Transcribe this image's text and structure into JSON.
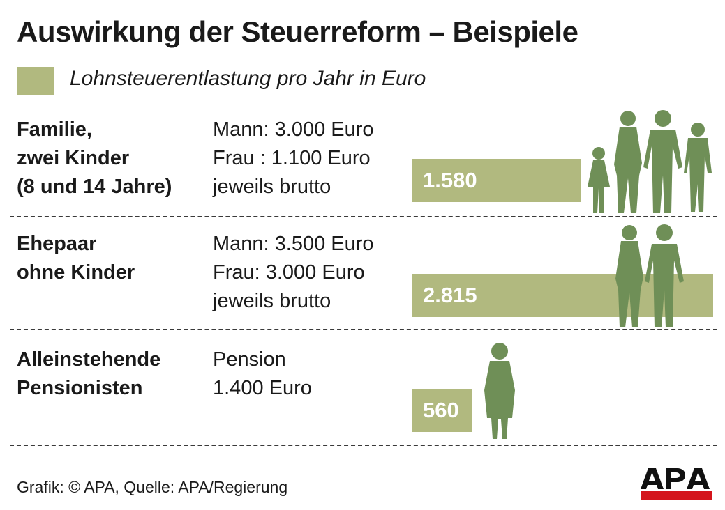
{
  "title": "Auswirkung der Steuerreform – Beispiele",
  "legend": {
    "label": "Lohnsteuerentlastung pro Jahr in Euro",
    "color": "#b1b97f"
  },
  "colors": {
    "bar": "#b1b97f",
    "silhouette": "#6f8f57",
    "logo_red": "#d4151c",
    "divider": "#3a3a3a"
  },
  "rows": [
    {
      "label": [
        "Familie,",
        "zwei Kinder",
        "(8 und 14 Jahre)"
      ],
      "detail": [
        "Mann: 3.000 Euro",
        "Frau : 1.100 Euro",
        "jeweils brutto"
      ],
      "value_label": "1.580",
      "icon": "family-silhouette-icon"
    },
    {
      "label": [
        "Ehepaar",
        "ohne Kinder"
      ],
      "detail": [
        "Mann: 3.500 Euro",
        "Frau: 3.000 Euro",
        "jeweils brutto"
      ],
      "value_label": "2.815",
      "icon": "couple-silhouette-icon"
    },
    {
      "label": [
        "Alleinstehende",
        "Pensionisten"
      ],
      "detail": [
        "Pension",
        "1.400 Euro"
      ],
      "value_label": "560",
      "icon": "pensioner-silhouette-icon"
    }
  ],
  "chart_data": {
    "type": "bar",
    "orientation": "horizontal",
    "title": "Auswirkung der Steuerreform – Beispiele",
    "categories": [
      "Familie, zwei Kinder (8 und 14 Jahre)",
      "Ehepaar ohne Kinder",
      "Alleinstehende Pensionisten"
    ],
    "values": [
      1580,
      2815,
      560
    ],
    "series": [
      {
        "name": "Lohnsteuerentlastung pro Jahr in Euro",
        "values": [
          1580,
          2815,
          560
        ]
      }
    ],
    "xlabel": "",
    "ylabel": "",
    "grid": false,
    "legend_position": "top-left"
  },
  "footer": {
    "source": "Grafik: © APA, Quelle: APA/Regierung",
    "logo": "APA"
  }
}
